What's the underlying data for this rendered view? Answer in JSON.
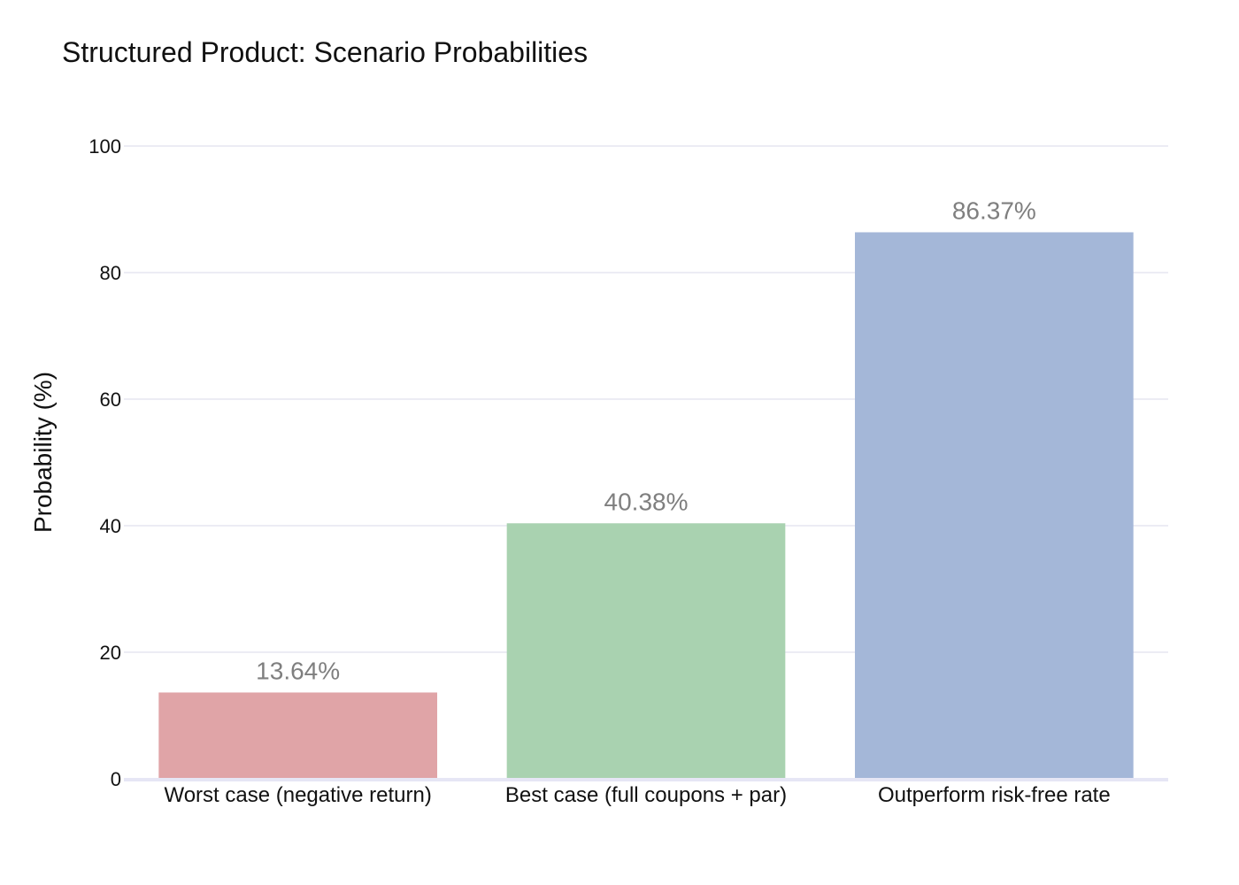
{
  "chart_data": {
    "type": "bar",
    "title": "Structured Product: Scenario Probabilities",
    "xlabel": "",
    "ylabel": "Probability (%)",
    "ylim": [
      0,
      100
    ],
    "yticks": [
      0,
      20,
      40,
      60,
      80,
      100
    ],
    "grid": true,
    "legend": "none",
    "categories": [
      "Worst case (negative return)",
      "Best case (full coupons + par)",
      "Outperform risk-free rate"
    ],
    "values": [
      13.64,
      40.38,
      86.37
    ],
    "data_labels": [
      "13.64%",
      "40.38%",
      "86.37%"
    ],
    "colors": [
      "#e0a4a7",
      "#a9d2b0",
      "#a4b7d8"
    ]
  }
}
